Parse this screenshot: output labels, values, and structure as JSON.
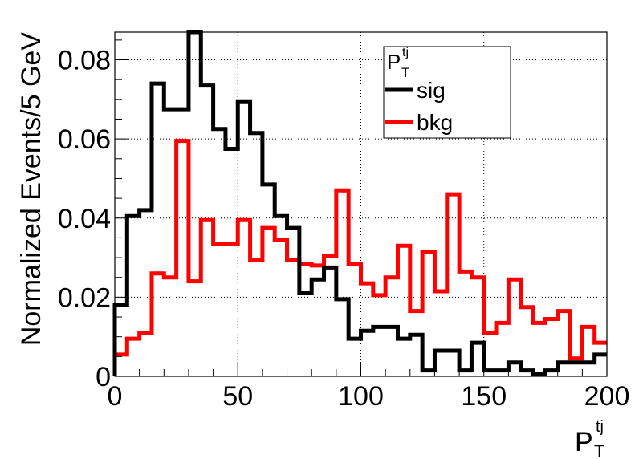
{
  "chart_data": {
    "type": "line",
    "style": "step-histogram",
    "ylabel": "Normalized Events/5 GeV",
    "xlabel": {
      "base": "P",
      "sub": "T",
      "sup": "tj"
    },
    "xlim": [
      0,
      200
    ],
    "ylim": [
      0,
      0.087
    ],
    "x_ticks": [
      "0",
      "50",
      "100",
      "150",
      "200"
    ],
    "y_ticks": [
      "0",
      "0.02",
      "0.04",
      "0.06",
      "0.08"
    ],
    "x_tick_values": [
      0,
      50,
      100,
      150,
      200
    ],
    "y_tick_values": [
      0,
      0.02,
      0.04,
      0.06,
      0.08
    ],
    "grid": true,
    "legend_position": "top-center",
    "legend_title": {
      "base": "P",
      "sub": "T",
      "sup": "tj"
    },
    "bin_edges": [
      0,
      5,
      10,
      15,
      20,
      25,
      30,
      35,
      40,
      45,
      50,
      55,
      60,
      65,
      70,
      75,
      80,
      85,
      90,
      95,
      100,
      105,
      110,
      115,
      120,
      125,
      130,
      135,
      140,
      145,
      150,
      155,
      160,
      165,
      170,
      175,
      180,
      185,
      190,
      195,
      200
    ],
    "series": [
      {
        "name": "sig",
        "color": "#000000",
        "values": [
          0.018,
          0.0405,
          0.042,
          0.074,
          0.0675,
          0.0675,
          0.087,
          0.0735,
          0.0625,
          0.0575,
          0.0695,
          0.0615,
          0.0485,
          0.0405,
          0.0375,
          0.021,
          0.0245,
          0.0275,
          0.0195,
          0.0095,
          0.0115,
          0.0125,
          0.0125,
          0.0095,
          0.0105,
          0.0015,
          0.0065,
          0.0065,
          0.0015,
          0.0085,
          0.0015,
          0.0015,
          0.0035,
          0.0015,
          0.0005,
          0.0015,
          0.0035,
          0.0035,
          0.0035,
          0.0055
        ]
      },
      {
        "name": "bkg",
        "color": "#ff0000",
        "values": [
          0.0055,
          0.0095,
          0.011,
          0.026,
          0.025,
          0.0595,
          0.024,
          0.0395,
          0.0335,
          0.0335,
          0.0395,
          0.0295,
          0.0375,
          0.0345,
          0.0295,
          0.0285,
          0.028,
          0.0305,
          0.047,
          0.0285,
          0.0235,
          0.0205,
          0.025,
          0.033,
          0.0165,
          0.0315,
          0.0215,
          0.046,
          0.0265,
          0.025,
          0.011,
          0.0135,
          0.0245,
          0.0175,
          0.0135,
          0.0145,
          0.0165,
          0.0045,
          0.0125,
          0.0085
        ]
      }
    ]
  }
}
